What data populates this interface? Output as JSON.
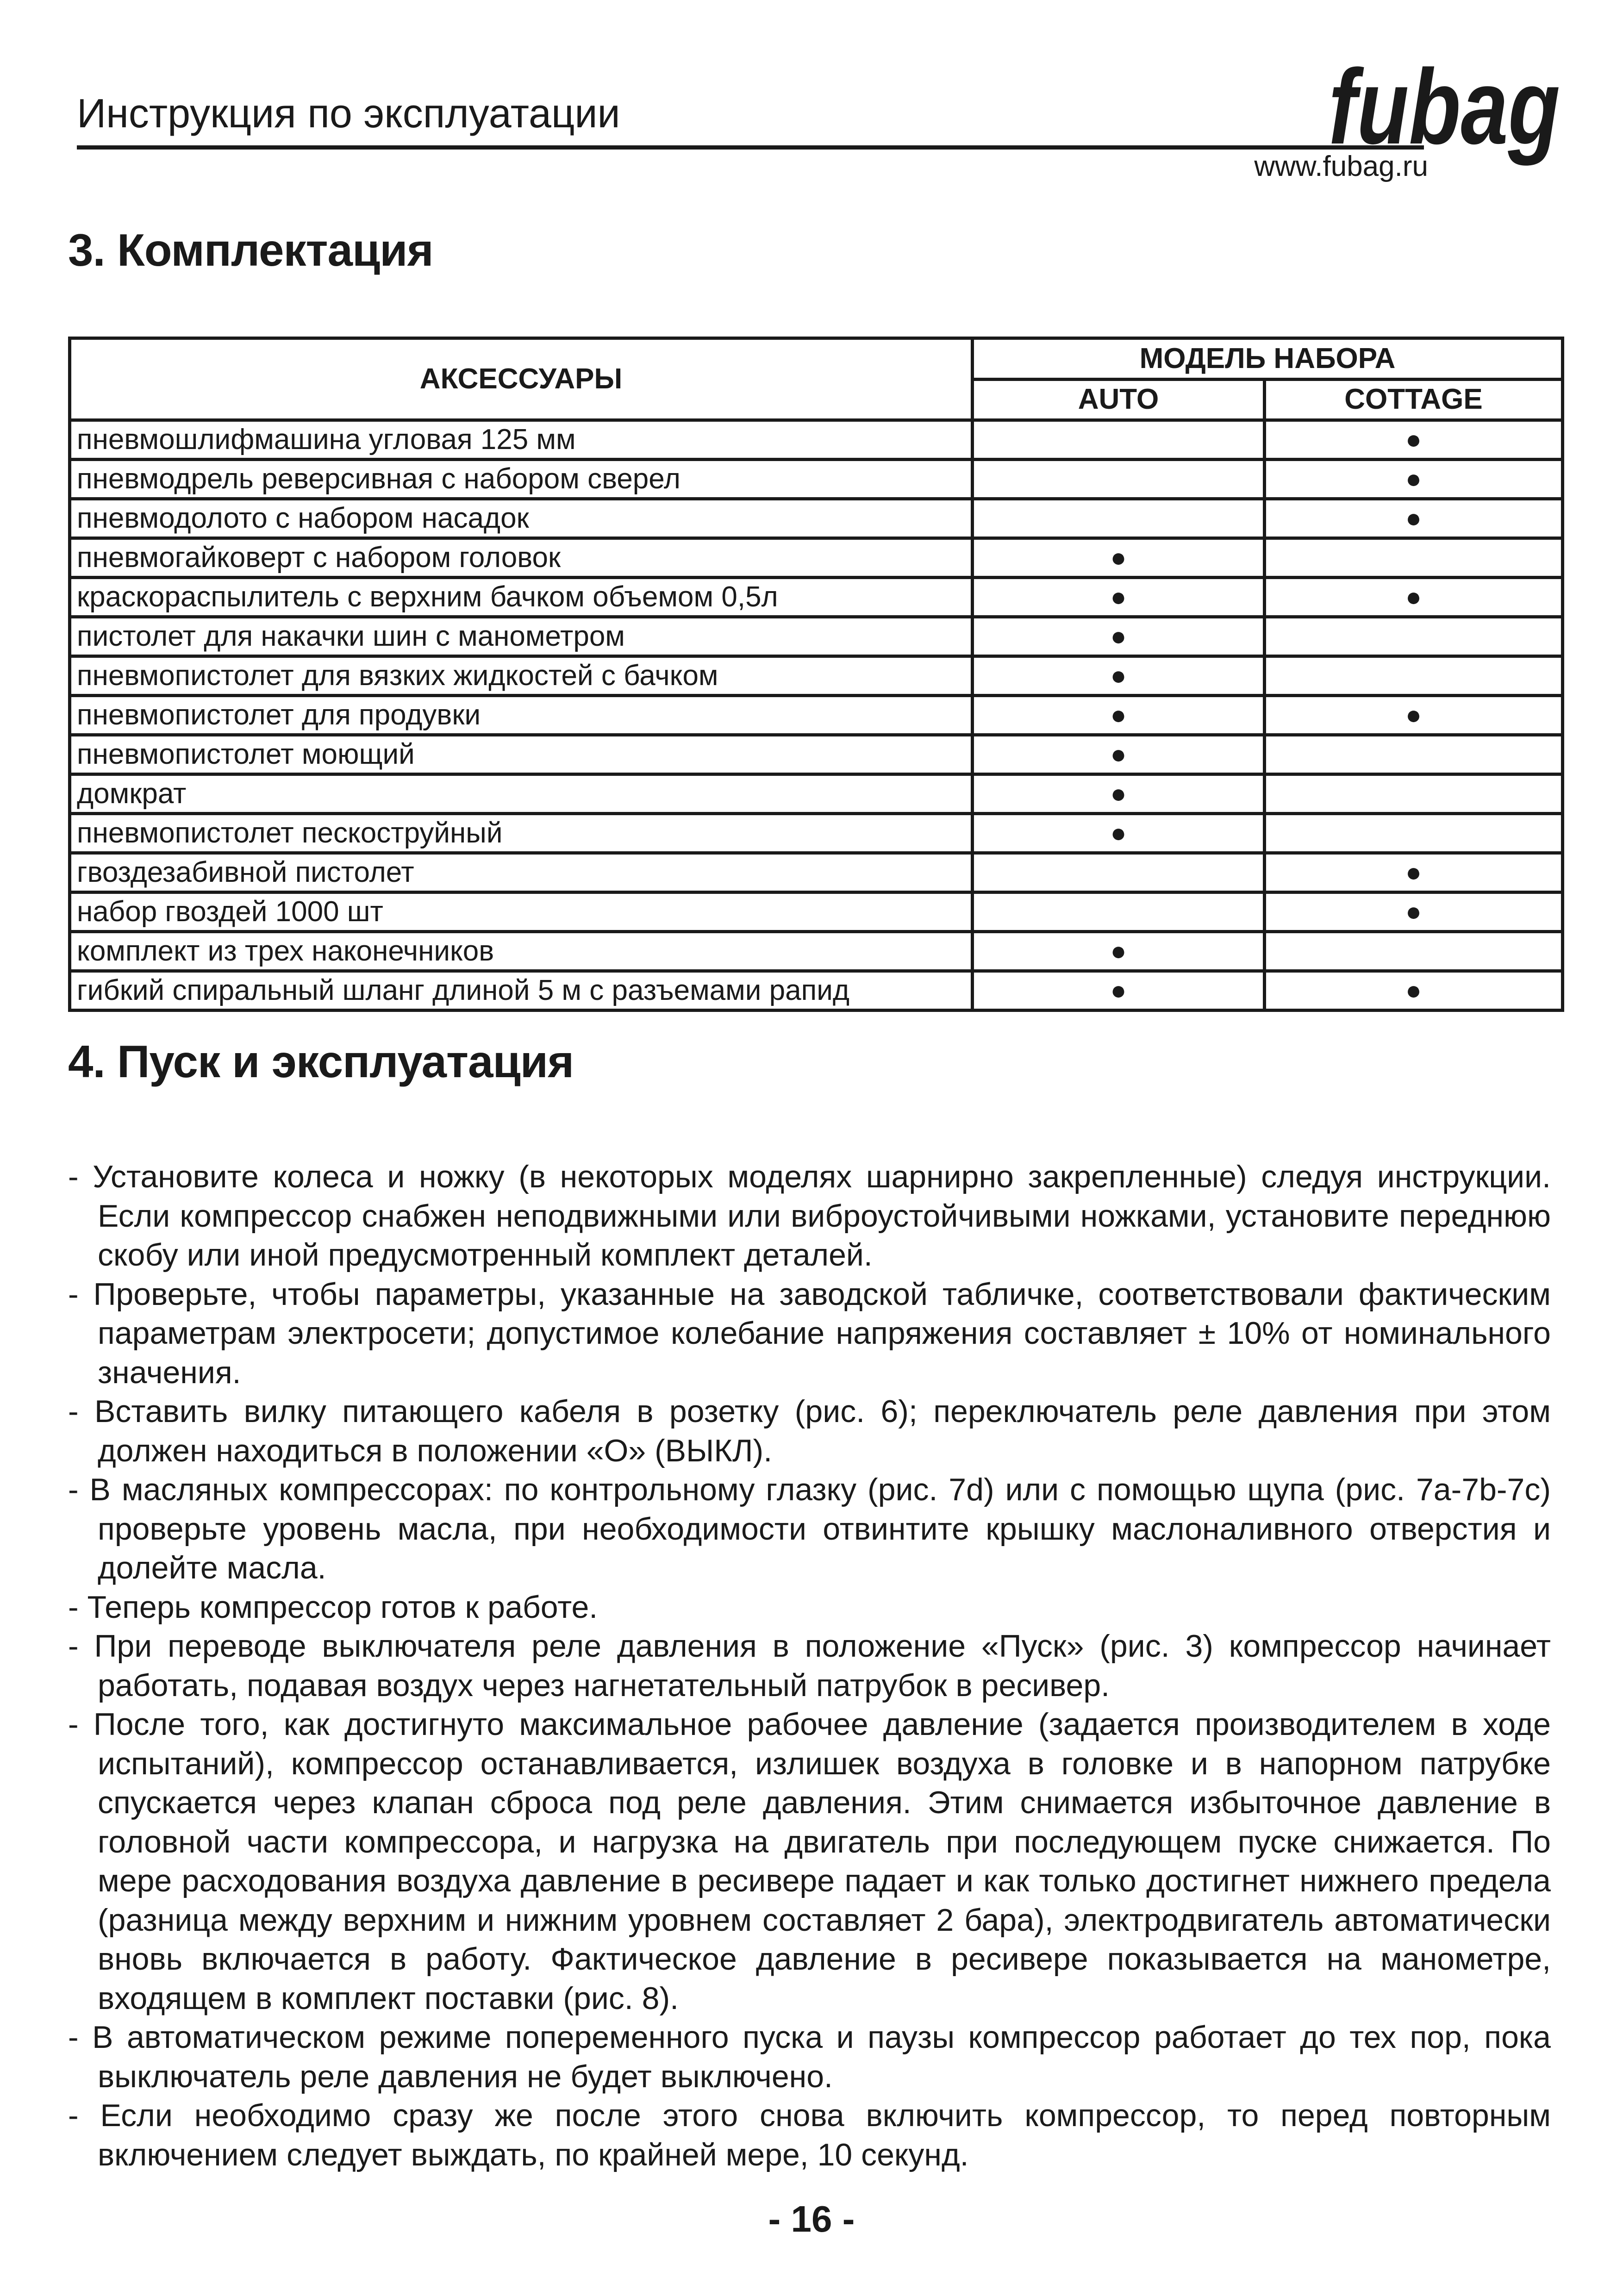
{
  "header": {
    "title": "Инструкция по эксплуатации",
    "logo_text": "fubag",
    "website": "www.fubag.ru"
  },
  "section3": {
    "title": "3. Комплектация",
    "table": {
      "col_accessories": "АКСЕССУАРЫ",
      "col_group": "МОДЕЛЬ НАБОРА",
      "col_auto": "AUTO",
      "col_cottage": "COTTAGE",
      "mark_symbol": "●",
      "rows": [
        {
          "name": "пневмошлифмашина угловая 125 мм",
          "auto": "",
          "cottage": "●"
        },
        {
          "name": "пневмодрель реверсивная с набором сверел",
          "auto": "",
          "cottage": "●"
        },
        {
          "name": "пневмодолото с набором насадок",
          "auto": "",
          "cottage": "●"
        },
        {
          "name": "пневмогайковерт с набором головок",
          "auto": "●",
          "cottage": ""
        },
        {
          "name": "краскораспылитель с верхним бачком объемом 0,5л",
          "auto": "●",
          "cottage": "●"
        },
        {
          "name": "пистолет для накачки шин с манометром",
          "auto": "●",
          "cottage": ""
        },
        {
          "name": "пневмопистолет для вязких жидкостей с бачком",
          "auto": "●",
          "cottage": ""
        },
        {
          "name": "пневмопистолет для продувки",
          "auto": "●",
          "cottage": "●"
        },
        {
          "name": "пневмопистолет моющий",
          "auto": "●",
          "cottage": ""
        },
        {
          "name": "домкрат",
          "auto": "●",
          "cottage": ""
        },
        {
          "name": "пневмопистолет пескоструйный",
          "auto": "●",
          "cottage": ""
        },
        {
          "name": "гвоздезабивной пистолет",
          "auto": "",
          "cottage": "●"
        },
        {
          "name": "набор гвоздей 1000 шт",
          "auto": "",
          "cottage": "●"
        },
        {
          "name": "комплект из трех наконечников",
          "auto": "●",
          "cottage": ""
        },
        {
          "name": "гибкий спиральный шланг длиной 5 м с разъемами рапид",
          "auto": "●",
          "cottage": "●"
        }
      ]
    }
  },
  "section4": {
    "title": "4. Пуск и эксплуатация",
    "items": [
      "- Установите колеса и ножку (в некоторых моделях шарнирно закрепленные) следуя инструкции. Если компрессор снабжен неподвижными или виброустойчивыми ножками, установите переднюю скобу или иной предусмотренный комплект деталей.",
      "- Проверьте, чтобы параметры, указанные на заводской табличке, соответствовали фактическим параметрам электросети; допустимое колебание напряжения составляет ± 10% от номинального значения.",
      "- Вставить вилку питающего кабеля в розетку (рис. 6); переключатель реле давления при этом должен находиться в положении «О» (ВЫКЛ).",
      "- В масляных компрессорах: по контрольному глазку (рис. 7d) или с помощью щупа (рис. 7a-7b-7c) проверьте уровень масла, при необходимости отвинтите крышку маслоналивного отверстия и долейте масла.",
      "- Теперь компрессор готов к работе.",
      "- При переводе выключателя реле давления в положение «Пуск» (рис. 3) компрессор начинает работать, подавая воздух через нагнетательный патрубок в ресивер.",
      "- После того, как достигнуто максимальное рабочее давление (задается производителем в ходе испытаний), компрессор останавливается, излишек воздуха в головке и в напорном патрубке спускается через клапан сброса под реле давления. Этим снимается избыточное давление в головной части компрессора, и нагрузка на двигатель при последующем пуске снижается. По мере расходования воздуха давление в ресивере падает и как только достигнет нижнего предела (разница между верхним и нижним уровнем составляет 2 бара), электродвигатель автоматически вновь включается в работу. Фактическое давление в ресивере показывается на манометре, входящем в комплект поставки (рис. 8).",
      "- В автоматическом режиме попеременного пуска и паузы компрессор работает до тех пор, пока выключатель реле давления не будет выключено.",
      "- Если необходимо сразу же после этого снова включить компрессор, то перед повторным включением следует выждать, по крайней мере, 10 секунд."
    ]
  },
  "footer": {
    "page_number": "- 16 -"
  }
}
